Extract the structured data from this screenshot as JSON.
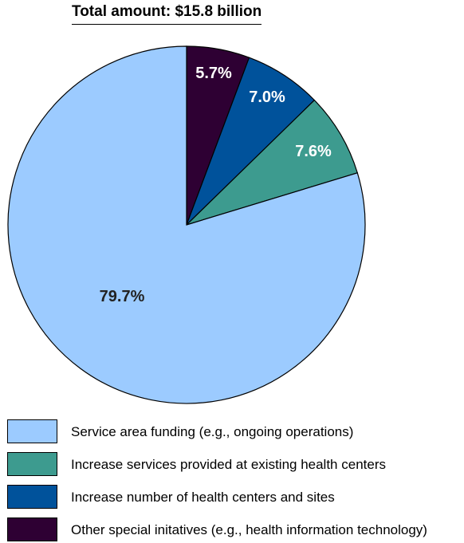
{
  "chart_data": {
    "type": "pie",
    "title": "Total amount: $15.8 billion",
    "slices": [
      {
        "label": "Other special initatives (e.g., health information technology)",
        "value": 5.7,
        "display": "5.7%",
        "color": "#2e0033",
        "text_color": "#ffffff"
      },
      {
        "label": "Increase number of health centers and sites",
        "value": 7.0,
        "display": "7.0%",
        "color": "#00529b",
        "text_color": "#ffffff"
      },
      {
        "label": "Increase services provided at existing health centers",
        "value": 7.6,
        "display": "7.6%",
        "color": "#3d9b8f",
        "text_color": "#ffffff"
      },
      {
        "label": "Service area funding (e.g., ongoing operations)",
        "value": 79.7,
        "display": "79.7%",
        "color": "#9ccbff",
        "text_color": "#222222"
      }
    ],
    "start": "top (12 o'clock)",
    "direction": "clockwise"
  },
  "legend": [
    {
      "label": "Service area funding (e.g., ongoing operations)",
      "color": "#9ccbff"
    },
    {
      "label": "Increase services provided at existing health centers",
      "color": "#3d9b8f"
    },
    {
      "label": "Increase number of health centers and sites",
      "color": "#00529b"
    },
    {
      "label": "Other special initatives (e.g., health information technology)",
      "color": "#2e0033"
    }
  ]
}
